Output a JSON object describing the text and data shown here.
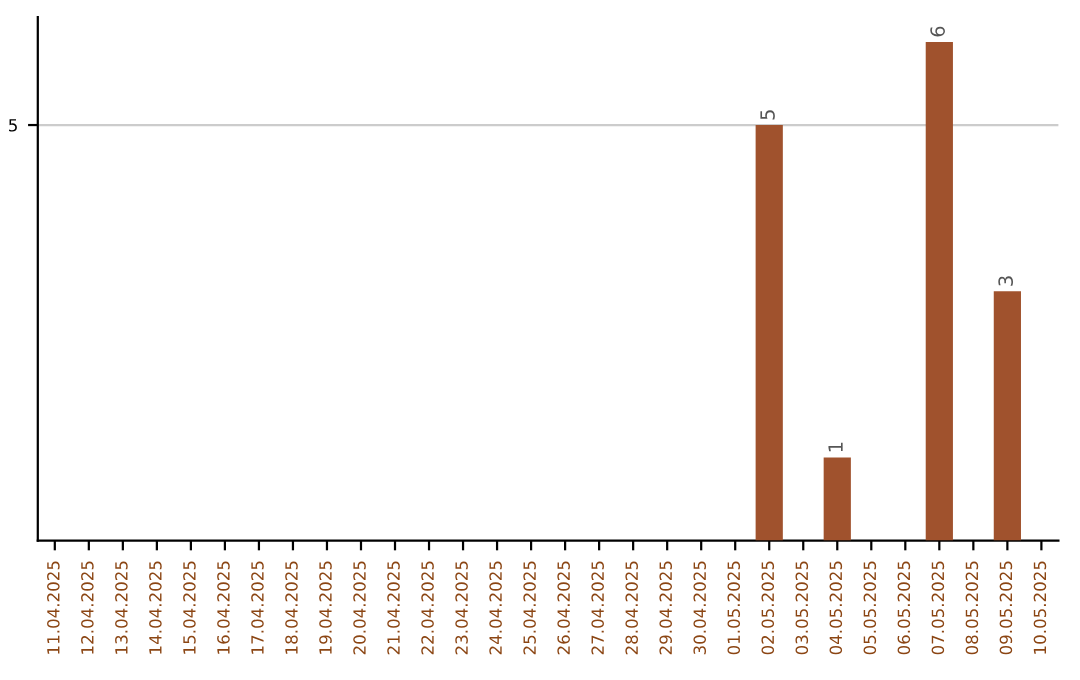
{
  "chart_data": {
    "type": "bar",
    "categories": [
      "11.04.2025",
      "12.04.2025",
      "13.04.2025",
      "14.04.2025",
      "15.04.2025",
      "16.04.2025",
      "17.04.2025",
      "18.04.2025",
      "19.04.2025",
      "20.04.2025",
      "21.04.2025",
      "22.04.2025",
      "23.04.2025",
      "24.04.2025",
      "25.04.2025",
      "26.04.2025",
      "27.04.2025",
      "28.04.2025",
      "29.04.2025",
      "30.04.2025",
      "01.05.2025",
      "02.05.2025",
      "03.05.2025",
      "04.05.2025",
      "05.05.2025",
      "06.05.2025",
      "07.05.2025",
      "08.05.2025",
      "09.05.2025",
      "10.05.2025"
    ],
    "values": [
      null,
      null,
      null,
      null,
      null,
      null,
      null,
      null,
      null,
      null,
      null,
      null,
      null,
      null,
      null,
      null,
      null,
      null,
      null,
      null,
      null,
      5,
      null,
      1,
      null,
      null,
      6,
      null,
      3,
      null
    ],
    "color": "#a0522d",
    "ylim": [
      0,
      6.3
    ],
    "yticks": [
      5
    ],
    "grid": "y",
    "data_labels": true
  }
}
